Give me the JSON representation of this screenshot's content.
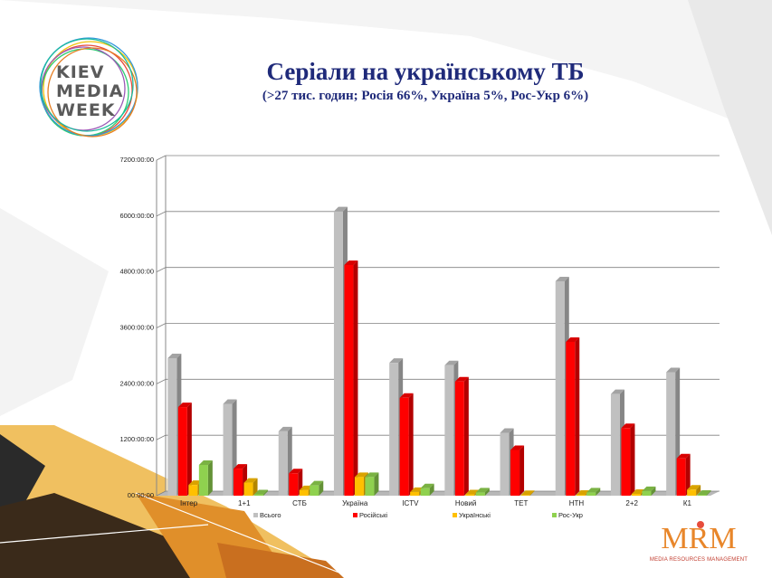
{
  "header": {
    "logo_lines": [
      "KIEV",
      "MEDIA",
      "WEEK"
    ],
    "title": "Серіали на українському ТБ",
    "subtitle": "(>27 тис. годин; Росія 66%, Україна 5%, Рос-Укр 6%)"
  },
  "footer": {
    "brand_letters": "MRM",
    "brand_caption": "MEDIA RESOURCES MANAGEMENT"
  },
  "chart_data": {
    "type": "bar",
    "categories": [
      "Інтер",
      "1+1",
      "СТБ",
      "Україна",
      "ICTV",
      "Новий",
      "ТЕТ",
      "НТН",
      "2+2",
      "К1"
    ],
    "y_tick_labels": [
      "00:00:00",
      "1200:00:00",
      "2400:00:00",
      "3600:00:00",
      "4800:00:00",
      "6000:00:00",
      "7200:00:00"
    ],
    "ylim": [
      0,
      7200
    ],
    "grid": true,
    "legend_position": "bottom",
    "series": [
      {
        "name": "Всього",
        "color": "#c0c0c0",
        "values": [
          2950,
          1970,
          1380,
          6100,
          2850,
          2800,
          1350,
          4600,
          2180,
          2650
        ]
      },
      {
        "name": "Російські",
        "color": "#ff0000",
        "values": [
          1900,
          580,
          480,
          4950,
          2100,
          2450,
          980,
          3300,
          1450,
          800
        ]
      },
      {
        "name": "Українські",
        "color": "#ffc000",
        "values": [
          230,
          280,
          120,
          400,
          80,
          30,
          15,
          20,
          40,
          130
        ]
      },
      {
        "name": "Рос-Укр",
        "color": "#8fd14f",
        "values": [
          660,
          30,
          220,
          400,
          160,
          70,
          0,
          70,
          100,
          20
        ]
      }
    ]
  }
}
